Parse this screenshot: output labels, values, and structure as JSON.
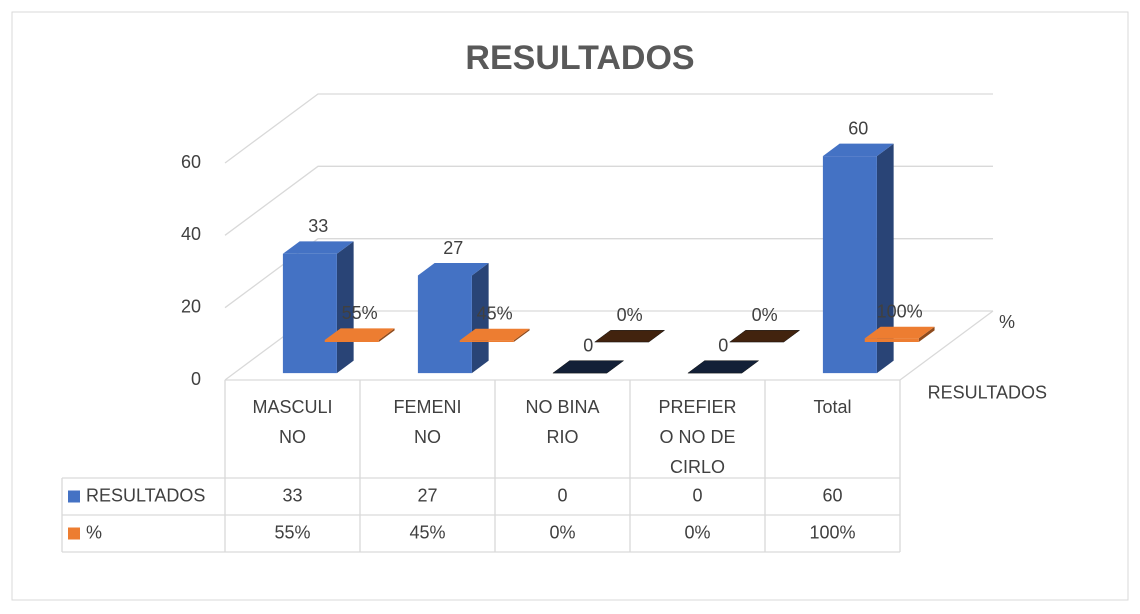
{
  "chart_data": {
    "type": "bar3d",
    "title": "RESULTADOS",
    "categories": [
      "MASCULINO",
      "FEMENINO",
      "NO BINARIO",
      "PREFIERO NO DECIRLO",
      "Total"
    ],
    "series": [
      {
        "name": "RESULTADOS",
        "color": "#4472c4",
        "values": [
          33,
          27,
          0,
          0,
          60
        ]
      },
      {
        "name": "%",
        "color": "#ed7d31",
        "values": [
          0.55,
          0.45,
          0,
          0,
          1
        ],
        "value_labels": [
          "55%",
          "45%",
          "0%",
          "0%",
          "100%"
        ]
      }
    ],
    "ylim": [
      0,
      60
    ],
    "yticks": [
      0,
      20,
      40,
      60
    ],
    "grid": true,
    "data_table": true
  }
}
